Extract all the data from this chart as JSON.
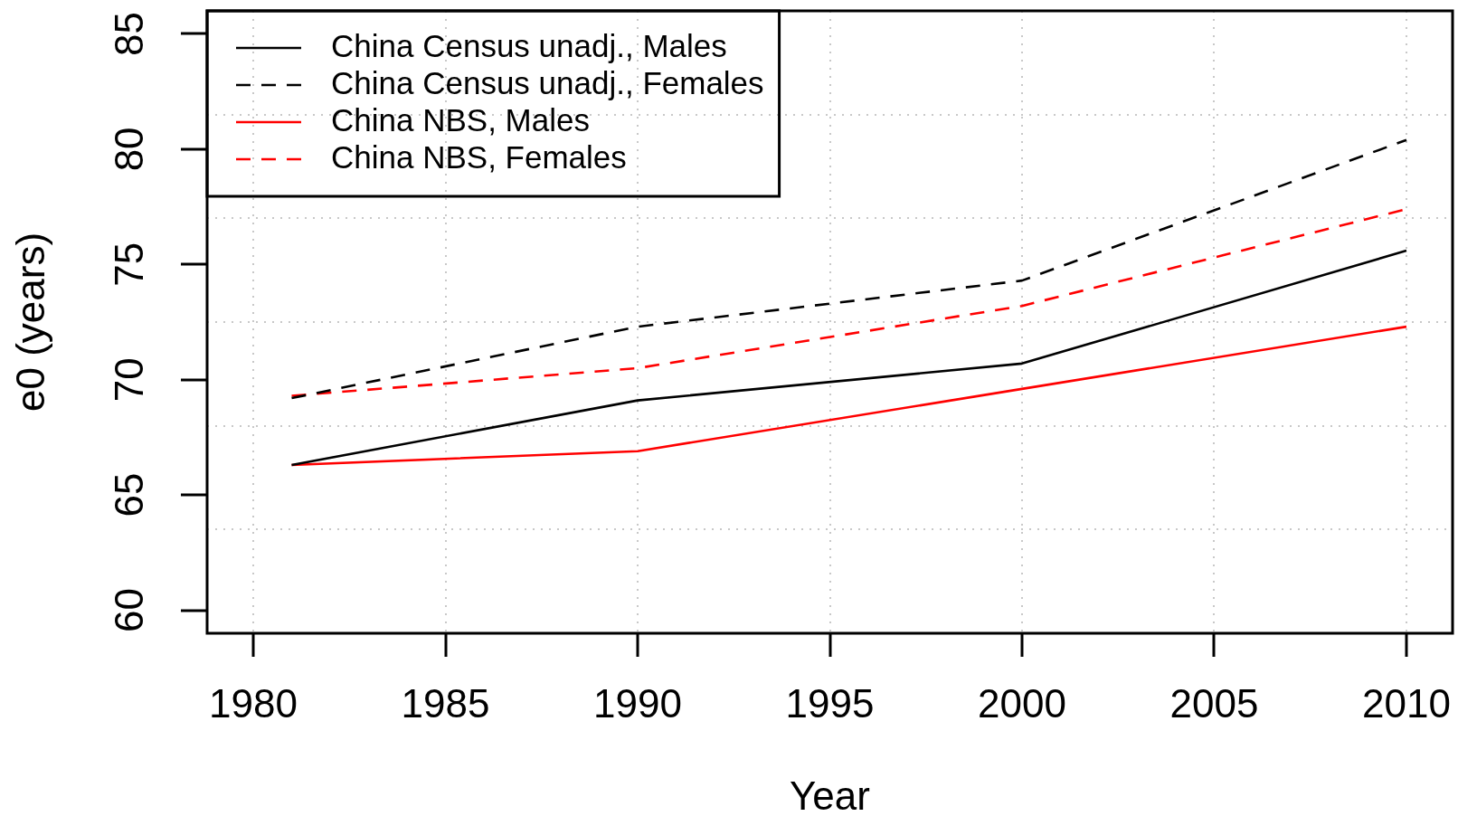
{
  "chart_data": {
    "type": "line",
    "xlabel": "Year",
    "ylabel": "e0 (years)",
    "x": [
      1981,
      1990,
      2000,
      2010
    ],
    "series": [
      {
        "name": "China Census unadj., Males",
        "color": "#000000",
        "line_style": "solid",
        "values": [
          66.3,
          69.1,
          70.7,
          75.6
        ]
      },
      {
        "name": "China Census unadj., Females",
        "color": "#000000",
        "line_style": "dashed",
        "values": [
          69.2,
          72.3,
          74.3,
          80.4
        ]
      },
      {
        "name": "China NBS, Males",
        "color": "#ff0000",
        "line_style": "solid",
        "values": [
          66.3,
          66.9,
          69.6,
          72.3
        ]
      },
      {
        "name": "China NBS, Females",
        "color": "#ff0000",
        "line_style": "dashed",
        "values": [
          69.3,
          70.5,
          73.2,
          77.4
        ]
      }
    ],
    "xlim": [
      1978.8,
      2011.2
    ],
    "xticks": [
      1980,
      1985,
      1990,
      1995,
      2000,
      2005,
      2010
    ],
    "ylim": [
      59,
      86
    ],
    "yticks": [
      60,
      {
        "value": 63.5,
        "label": null
      },
      65,
      {
        "value": 68,
        "label": null
      },
      70,
      {
        "value": 72.5,
        "label": null
      },
      75,
      {
        "value": 77,
        "label": null
      },
      80,
      {
        "value": 81.5,
        "label": null
      },
      85
    ],
    "grid": true,
    "legend": "top left"
  }
}
